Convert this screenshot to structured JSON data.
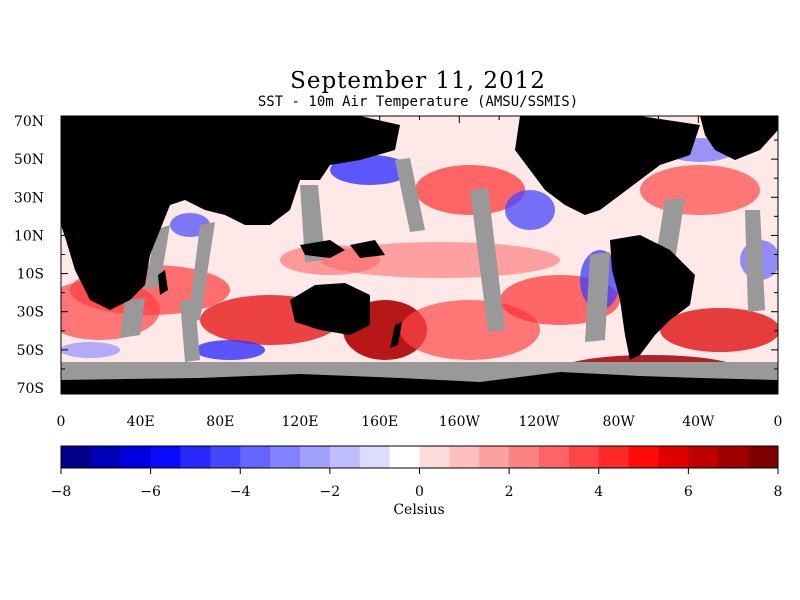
{
  "title": "September 11, 2012",
  "subtitle": "SST - 10m Air Temperature (AMSU/SSMIS)",
  "map": {
    "lat_labels": [
      "70N",
      "50N",
      "30N",
      "10N",
      "10S",
      "30S",
      "50S",
      "70S"
    ],
    "lon_labels": [
      "0",
      "40E",
      "80E",
      "120E",
      "160E",
      "160W",
      "120W",
      "80W",
      "40W",
      "0"
    ],
    "colors": {
      "land": "#000000",
      "missing": "#999999",
      "ocean_neutral": "#ffe8e8"
    }
  },
  "colorbar": {
    "label": "Celsius",
    "tick_labels": [
      "−8",
      "−6",
      "−4",
      "−2",
      "0",
      "2",
      "4",
      "6",
      "8"
    ],
    "min": -8,
    "max": 8,
    "colors": [
      "#00008b",
      "#0000b8",
      "#0000e0",
      "#0a0aff",
      "#2828ff",
      "#4646ff",
      "#6464ff",
      "#8282ff",
      "#a0a0ff",
      "#bebeff",
      "#dcdcff",
      "#ffffff",
      "#ffdcdc",
      "#ffbebe",
      "#ffa0a0",
      "#ff8282",
      "#ff6464",
      "#ff4646",
      "#ff2828",
      "#ff0a0a",
      "#e00000",
      "#c00000",
      "#a00000",
      "#800000"
    ]
  }
}
